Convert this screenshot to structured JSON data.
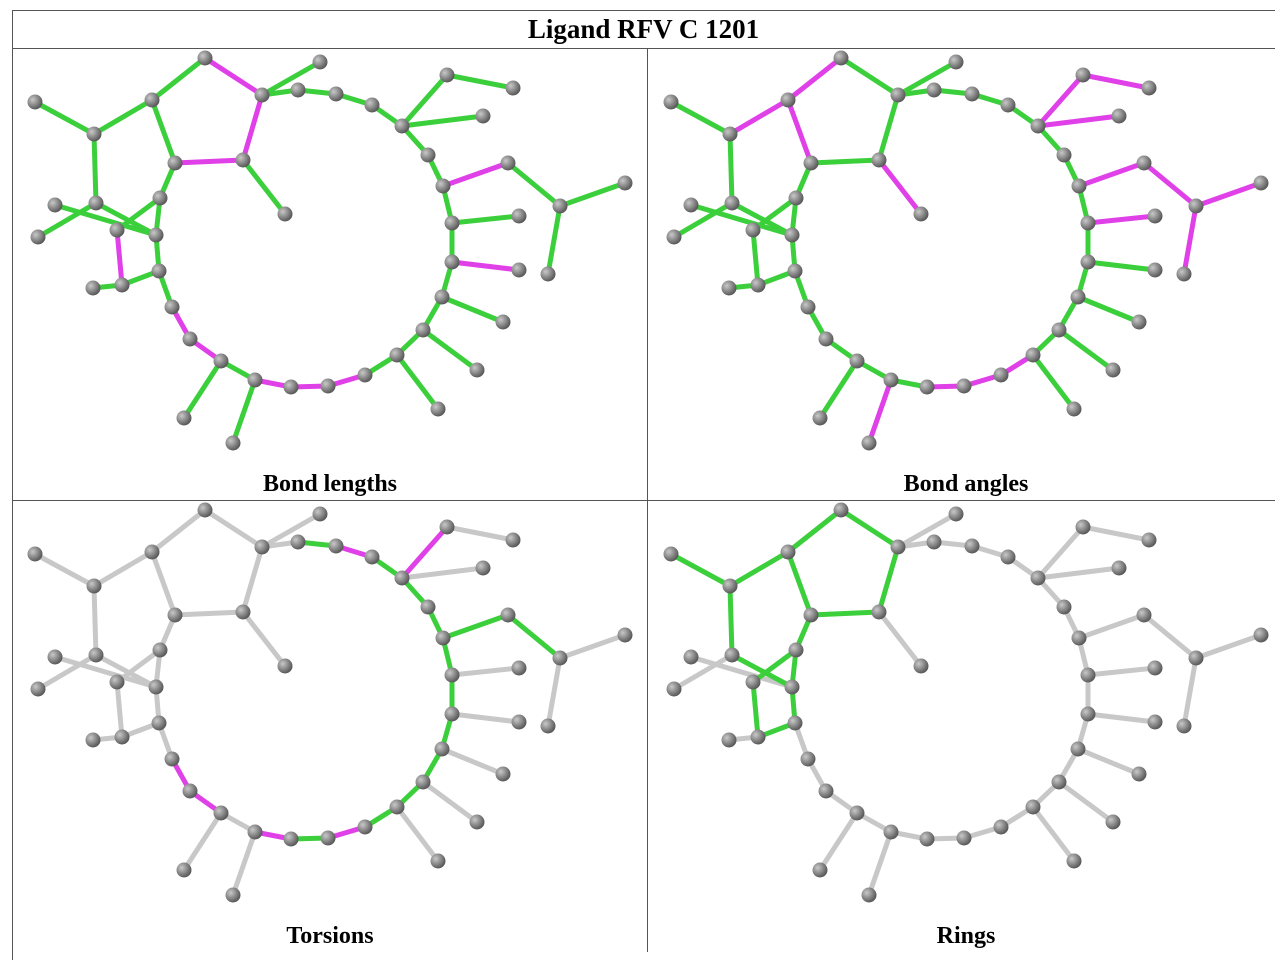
{
  "title": "Ligand RFV C 1201",
  "panels": [
    {
      "caption": "Bond lengths"
    },
    {
      "caption": "Bond angles"
    },
    {
      "caption": "Torsions"
    },
    {
      "caption": "Rings"
    }
  ]
}
